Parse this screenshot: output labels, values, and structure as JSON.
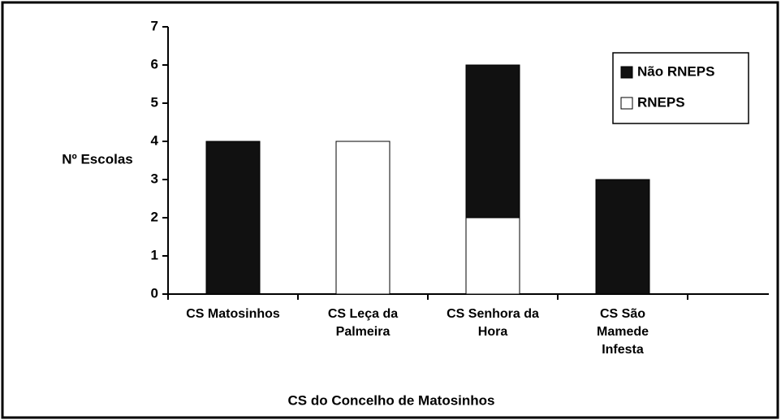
{
  "chart_data": {
    "type": "bar",
    "stacked": true,
    "x_label": "CS do Concelho de Matosinhos",
    "y_label": "Nº Escolas",
    "categories": [
      "CS Matosinhos",
      "CS Leça da Palmeira",
      "CS Senhora da Hora",
      "CS São Mamede Infesta"
    ],
    "series": [
      {
        "name": "Não RNEPS",
        "color": "#111111",
        "values": [
          4,
          0,
          4,
          3
        ]
      },
      {
        "name": "RNEPS",
        "color": "#ffffff",
        "values": [
          0,
          4,
          2,
          0
        ]
      }
    ],
    "ylim": [
      0,
      7
    ],
    "yticks": [
      0,
      1,
      2,
      3,
      4,
      5,
      6,
      7
    ],
    "legend": "upper right"
  }
}
